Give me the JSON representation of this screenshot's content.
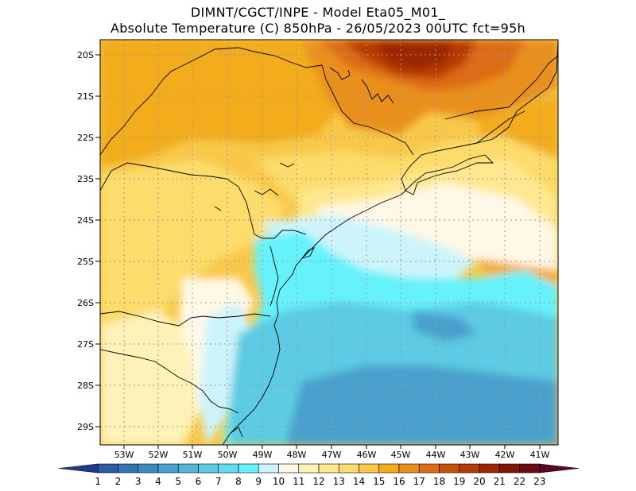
{
  "title": {
    "line1": "DIMNT/CGCT/INPE -  Model Eta05_M01_",
    "line2": "Absolute Temperature (C) 850hPa -  26/05/2023 00UTC fct=95h"
  },
  "axes": {
    "lat_labels": [
      "20S",
      "21S",
      "22S",
      "23S",
      "24S",
      "25S",
      "26S",
      "27S",
      "28S",
      "29S"
    ],
    "lon_labels": [
      "53W",
      "52W",
      "51W",
      "50W",
      "49W",
      "48W",
      "47W",
      "46W",
      "45W",
      "44W",
      "43W",
      "42W",
      "41W"
    ]
  },
  "colorbar": {
    "labels": [
      "1",
      "2",
      "3",
      "4",
      "5",
      "6",
      "7",
      "8",
      "9",
      "10",
      "11",
      "12",
      "13",
      "14",
      "15",
      "16",
      "17",
      "18",
      "19",
      "20",
      "21",
      "22",
      "23"
    ],
    "colors": [
      "#1f3b8c",
      "#2b5aa6",
      "#3574b3",
      "#3d89bf",
      "#4aa0cc",
      "#53b6d9",
      "#5ccbe3",
      "#62dfee",
      "#66f2fb",
      "#cdf4fb",
      "#fff8e6",
      "#fff2b8",
      "#ffe890",
      "#fcdc6a",
      "#f8c84a",
      "#f2ac1c",
      "#e9901a",
      "#dd6c12",
      "#c9500a",
      "#b73a05",
      "#9c2703",
      "#7e1803",
      "#6a0e15",
      "#5a0720"
    ]
  },
  "map_colors": {
    "cyan": "#66f2fb",
    "light_cyan": "#cdf4fb",
    "blue_mid": "#5ccbe3",
    "blue_dark": "#4aa0cc",
    "cream": "#fff8e6",
    "yellow_light": "#fff2b8",
    "yellow": "#ffe890",
    "yellow_mid": "#fcdc6a",
    "orange_light": "#f8c84a",
    "orange": "#f2ac1c",
    "orange_dark": "#e9901a",
    "red_orange": "#dd6c12",
    "brown": "#b73a05",
    "dark_brown": "#9c2703"
  }
}
